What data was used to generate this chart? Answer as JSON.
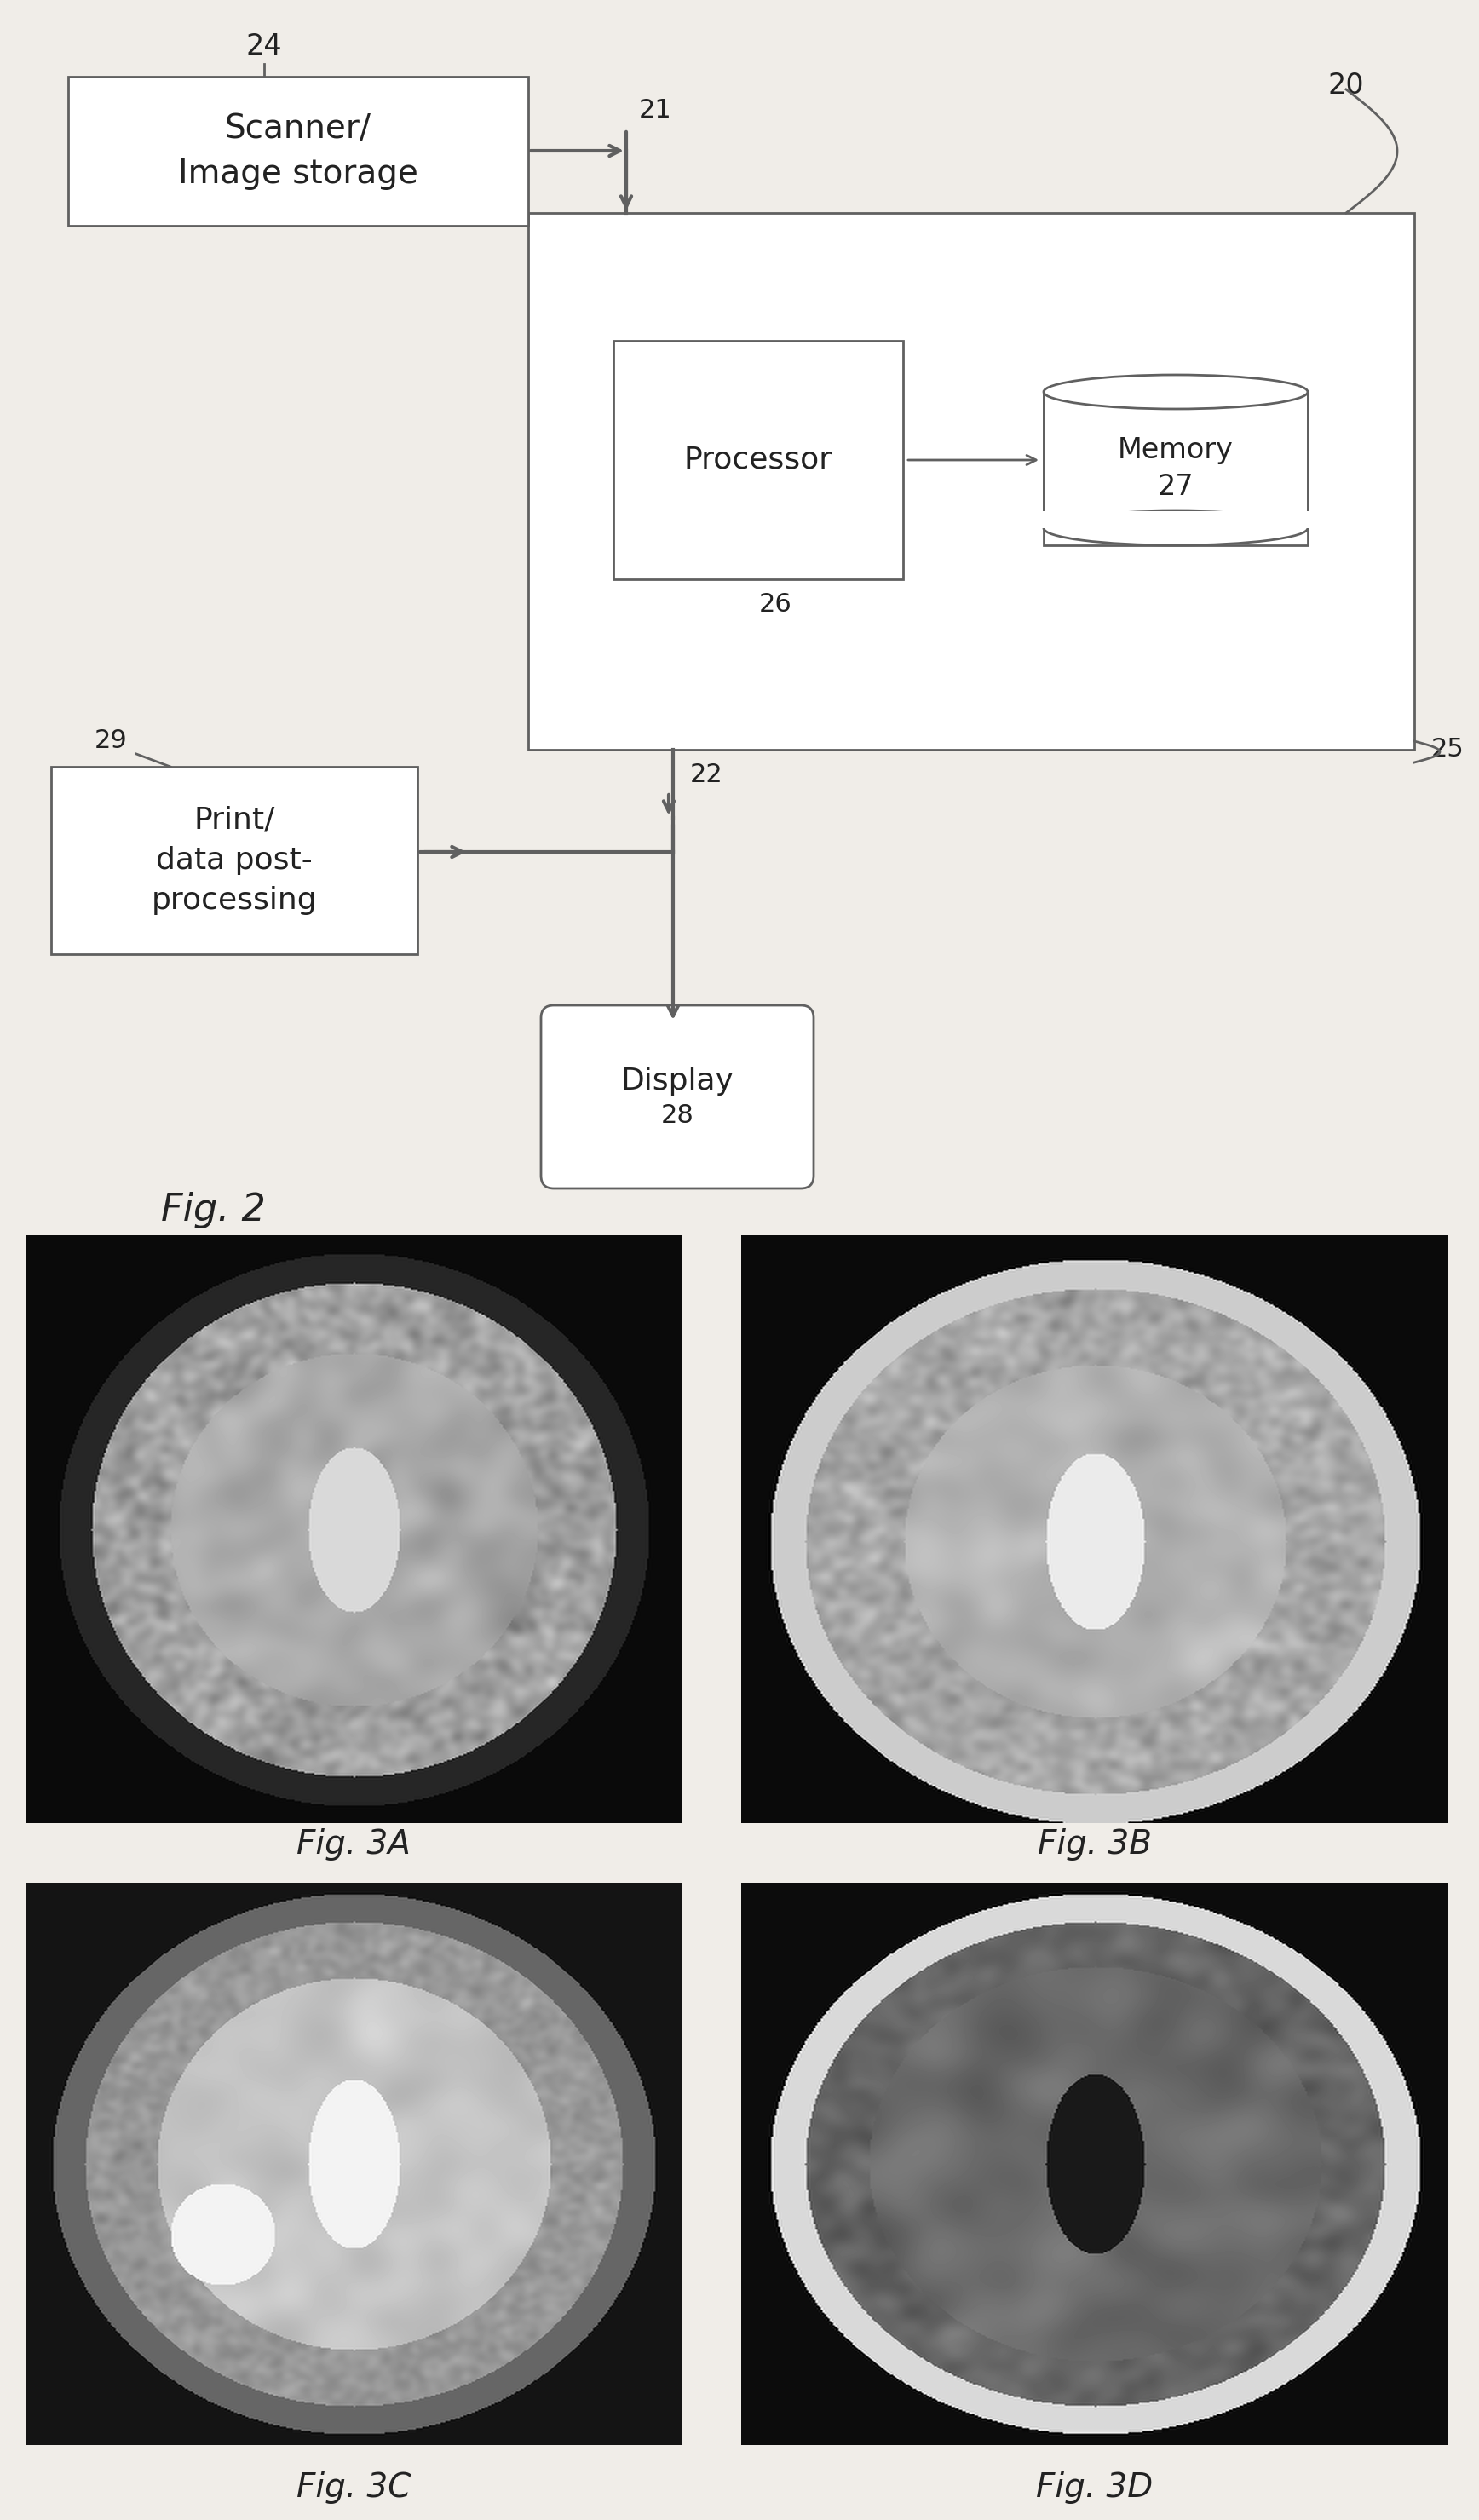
{
  "bg_color": "#f0ede8",
  "fig_labels": [
    "Fig. 3A",
    "Fig. 3B",
    "Fig. 3C",
    "Fig. 3D"
  ],
  "line_color": "#606060",
  "text_color": "#222222",
  "scanner_label": "Scanner/\nImage storage",
  "scanner_num": "24",
  "system_num": "20",
  "processor_label": "Processor",
  "processor_num": "26",
  "memory_label": "Memory\n27",
  "print_label": "Print/\ndata post-\nprocessing",
  "print_num": "29",
  "display_label": "Display",
  "display_num": "28",
  "arrow21_label": "21",
  "arrow22_label": "22",
  "arrow25_label": "25",
  "fig2_label": "Fig. 2"
}
